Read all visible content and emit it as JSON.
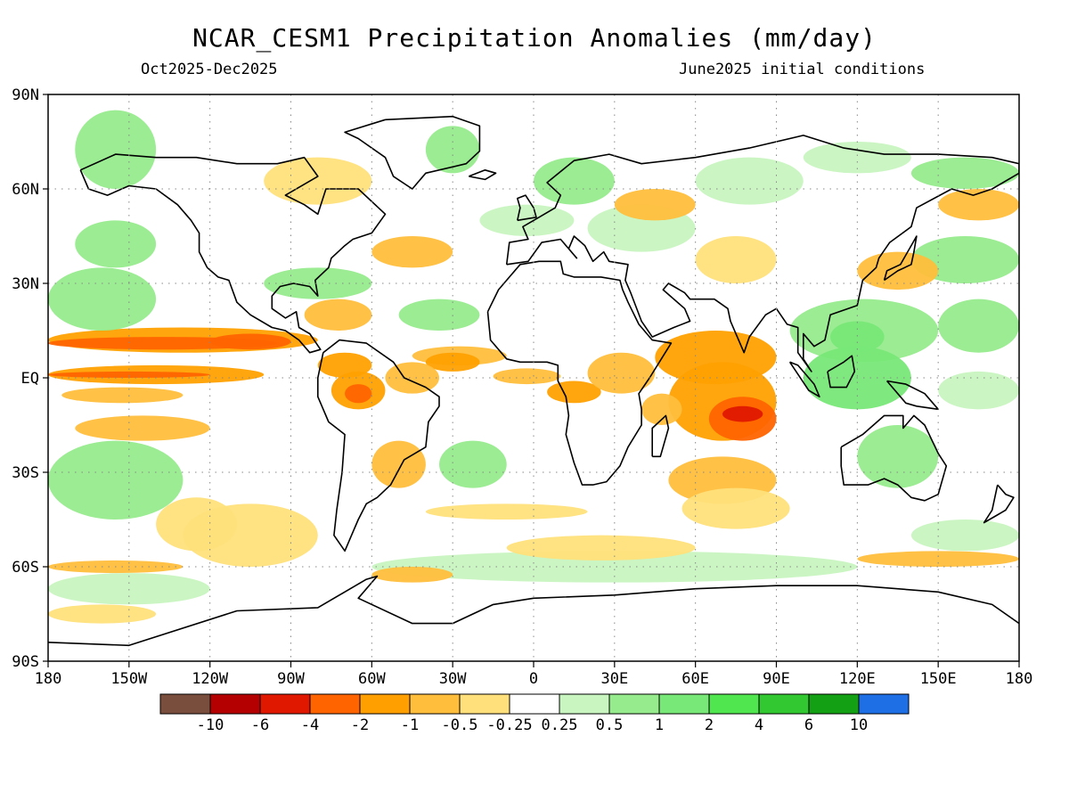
{
  "header": {
    "title": "NCAR_CESM1 Precipitation Anomalies (mm/day)",
    "period": "Oct2025-Dec2025",
    "init": "June2025 initial conditions"
  },
  "map": {
    "lon_range": [
      -180,
      180
    ],
    "lat_range": [
      -90,
      90
    ],
    "grid": "dotted",
    "lat_ticks": [
      {
        "value": 90,
        "label": "90N"
      },
      {
        "value": 60,
        "label": "60N"
      },
      {
        "value": 30,
        "label": "30N"
      },
      {
        "value": 0,
        "label": "EQ"
      },
      {
        "value": -30,
        "label": "30S"
      },
      {
        "value": -60,
        "label": "60S"
      },
      {
        "value": -90,
        "label": "90S"
      }
    ],
    "lon_ticks": [
      {
        "value": -180,
        "label": "180"
      },
      {
        "value": -150,
        "label": "150W"
      },
      {
        "value": -120,
        "label": "120W"
      },
      {
        "value": -90,
        "label": "90W"
      },
      {
        "value": -60,
        "label": "60W"
      },
      {
        "value": -30,
        "label": "30W"
      },
      {
        "value": 0,
        "label": "0"
      },
      {
        "value": 30,
        "label": "30E"
      },
      {
        "value": 60,
        "label": "60E"
      },
      {
        "value": 90,
        "label": "90E"
      },
      {
        "value": 120,
        "label": "120E"
      },
      {
        "value": 150,
        "label": "150E"
      },
      {
        "value": 180,
        "label": "180"
      }
    ]
  },
  "colorbar": {
    "colors": [
      "#7a4e3c",
      "#b40000",
      "#e01800",
      "#ff6400",
      "#ffa000",
      "#ffbe3c",
      "#ffe07a",
      "#ffffff",
      "#c8f5c0",
      "#96eb8c",
      "#78e878",
      "#50e650",
      "#32c832",
      "#14a014",
      "#1e6ee6"
    ],
    "labels": [
      "-10",
      "-6",
      "-4",
      "-2",
      "-1",
      "-0.5",
      "-0.25",
      "0.25",
      "0.5",
      "1",
      "2",
      "4",
      "6",
      "10"
    ]
  },
  "chart_data": {
    "type": "heatmap",
    "title": "NCAR_CESM1 Precipitation Anomalies (mm/day)",
    "levels": [
      -10,
      -6,
      -4,
      -2,
      -1,
      -0.5,
      -0.25,
      0.25,
      0.5,
      1,
      2,
      4,
      6,
      10
    ],
    "regions": [
      {
        "name": "east-pacific-itcz-dry",
        "lon": [
          -180,
          -80
        ],
        "lat": [
          3,
          14
        ],
        "value": -2
      },
      {
        "name": "equatorial-pacific-dry",
        "lon": [
          -180,
          -95
        ],
        "lat": [
          -2,
          5
        ],
        "value": -1.5
      },
      {
        "name": "indian-ocean-dry",
        "lon": [
          45,
          90
        ],
        "lat": [
          -20,
          10
        ],
        "value": -1.5
      },
      {
        "name": "south-indian-dry-core",
        "lon": [
          70,
          85
        ],
        "lat": [
          -14,
          -8
        ],
        "value": -4
      },
      {
        "name": "maritime-continent-wet",
        "lon": [
          95,
          150
        ],
        "lat": [
          -20,
          20
        ],
        "value": 1.5
      },
      {
        "name": "west-pacific-wet",
        "lon": [
          150,
          180
        ],
        "lat": [
          10,
          30
        ],
        "value": 1
      },
      {
        "name": "south-america-north-dry",
        "lon": [
          -75,
          -50
        ],
        "lat": [
          -12,
          8
        ],
        "value": -1.5
      },
      {
        "name": "atlantic-itcz-dry",
        "lon": [
          -45,
          -10
        ],
        "lat": [
          0,
          10
        ],
        "value": -0.5
      },
      {
        "name": "africa-east-dry",
        "lon": [
          20,
          45
        ],
        "lat": [
          -10,
          8
        ],
        "value": -1
      },
      {
        "name": "australia-wet",
        "lon": [
          120,
          150
        ],
        "lat": [
          -35,
          -15
        ],
        "value": 1
      },
      {
        "name": "south-atlantic-wet",
        "lon": [
          -35,
          -10
        ],
        "lat": [
          -35,
          -15
        ],
        "value": 1
      },
      {
        "name": "southern-ocean-wet",
        "lon": [
          -60,
          120
        ],
        "lat": [
          -65,
          -55
        ],
        "value": 0.5
      }
    ]
  }
}
